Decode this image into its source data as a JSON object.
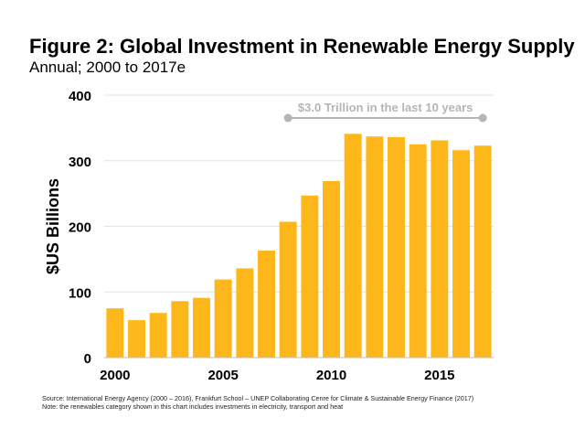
{
  "header": {
    "title": "Figure 2: Global Investment in Renewable Energy Supply",
    "subtitle": "Annual; 2000 to 2017e"
  },
  "footer": {
    "source": "Source: International Energy Agency (2000 – 2016), Frankfurt School – UNEP Collaborating Cenre for Climate & Sustainable Energy Finance (2017)",
    "note": "Note: the renewables category shown in this chart includes investments in electricity, transport and heat"
  },
  "chart_data": {
    "type": "bar",
    "title": "Figure 2: Global Investment in Renewable Energy Supply",
    "subtitle": "Annual; 2000 to 2017e",
    "ylabel": "$US Billions",
    "xlabel": "",
    "categories": [
      "2000",
      "2001",
      "2002",
      "2003",
      "2004",
      "2005",
      "2006",
      "2007",
      "2008",
      "2009",
      "2010",
      "2011",
      "2012",
      "2013",
      "2014",
      "2015",
      "2016",
      "2017"
    ],
    "values": [
      75,
      57,
      68,
      86,
      91,
      119,
      136,
      163,
      207,
      247,
      269,
      341,
      337,
      336,
      325,
      331,
      316,
      323
    ],
    "ylim": [
      0,
      400
    ],
    "yticks": [
      0,
      100,
      200,
      300,
      400
    ],
    "xticks": [
      "2000",
      "2005",
      "2010",
      "2015"
    ],
    "grid": true,
    "bar_color": "#FDB71A",
    "annotation": {
      "text": "$3.0 Trillion in the last 10 years",
      "from": "2008",
      "to": "2017",
      "color": "#B5B5B5"
    }
  }
}
